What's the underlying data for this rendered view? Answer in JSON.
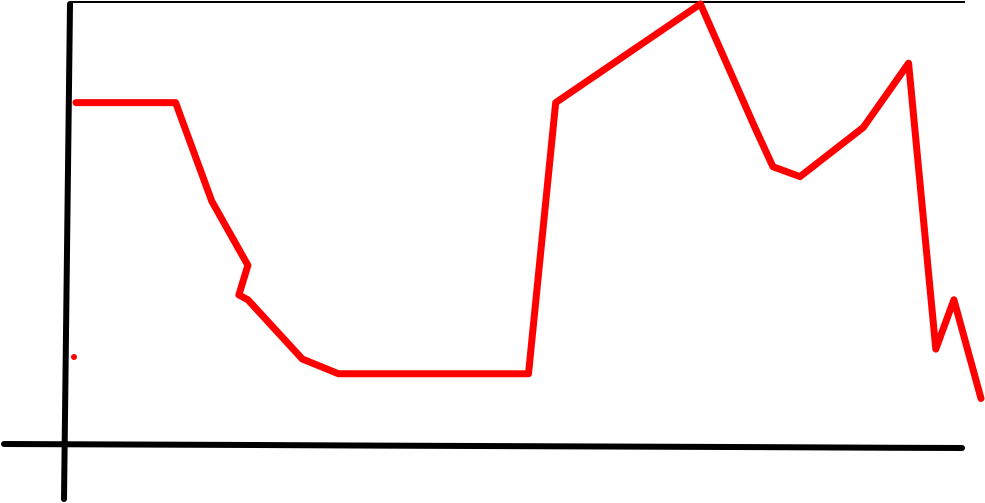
{
  "chart_data": {
    "type": "line",
    "title": "",
    "xlabel": "",
    "ylabel": "",
    "xlim": [
      0,
      100
    ],
    "ylim": [
      0,
      100
    ],
    "grid": false,
    "axis_color": "#000000",
    "series": [
      {
        "color": "#ff0000",
        "x": [
          0,
          11,
          15,
          19,
          18,
          19,
          25,
          29,
          50,
          53,
          69,
          75,
          77,
          80,
          87,
          92,
          95,
          97,
          100
        ],
        "y": [
          80,
          80,
          60,
          47,
          41,
          40,
          28,
          25,
          25,
          80,
          100,
          75,
          67,
          65,
          75,
          88,
          30,
          40,
          20
        ]
      }
    ]
  }
}
